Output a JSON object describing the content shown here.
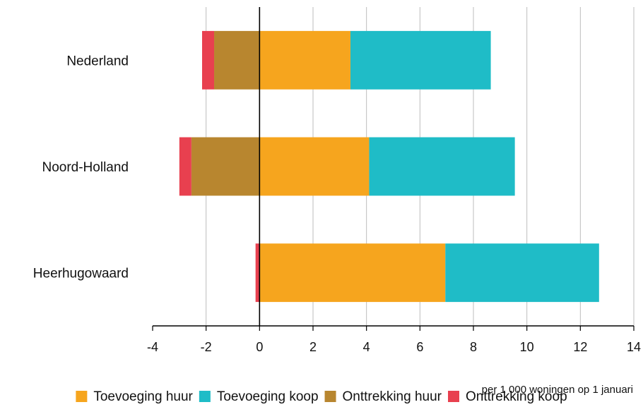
{
  "chart_data": {
    "type": "bar",
    "orientation": "horizontal",
    "stacked": true,
    "categories": [
      "Nederland",
      "Noord-Holland",
      "Heerhugowaard"
    ],
    "series": [
      {
        "name": "Toevoeging huur",
        "color": "#F6A51E",
        "values": [
          3.4,
          4.1,
          6.95
        ]
      },
      {
        "name": "Toevoeging koop",
        "color": "#1FBCC7",
        "values": [
          5.25,
          5.45,
          5.75
        ]
      },
      {
        "name": "Onttrekking huur",
        "color": "#B8862F",
        "values": [
          -1.7,
          -2.55,
          0
        ]
      },
      {
        "name": "Onttrekking koop",
        "color": "#E8404F",
        "values": [
          -0.45,
          -0.45,
          -0.15
        ]
      }
    ],
    "xlim": [
      -4,
      14
    ],
    "xticks": [
      "-4",
      "-2",
      "0",
      "2",
      "4",
      "6",
      "8",
      "10",
      "12",
      "14"
    ],
    "xlabel": "per 1 000 woningen op 1 januari",
    "grid": "vertical",
    "legend_position": "bottom"
  }
}
